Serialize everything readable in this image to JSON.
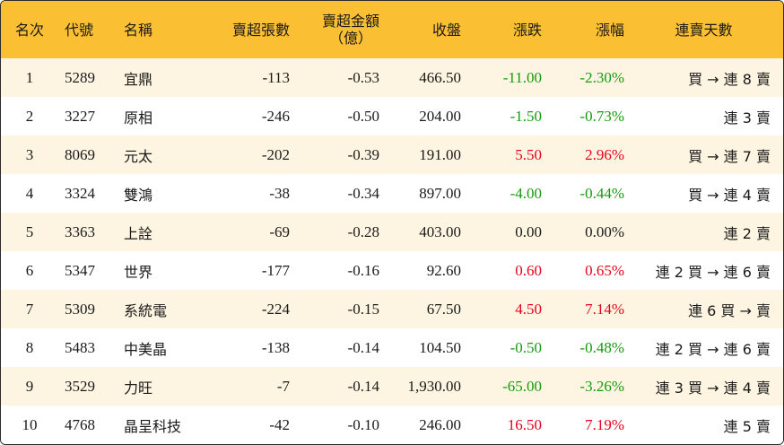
{
  "headers": {
    "rank": "名次",
    "code": "代號",
    "name": "名稱",
    "sell_lots": "賣超張數",
    "sell_amount_line1": "賣超金額",
    "sell_amount_line2": "（億）",
    "close": "收盤",
    "change": "漲跌",
    "change_pct": "漲幅",
    "streak": "連賣天數"
  },
  "rows": [
    {
      "rank": "1",
      "code": "5289",
      "name": "宜鼎",
      "sell_lots": "-113",
      "sell_amount": "-0.53",
      "close": "466.50",
      "change": "-11.00",
      "change_pct": "-2.30%",
      "streak": "買 → 連 8 賣",
      "dir": "neg"
    },
    {
      "rank": "2",
      "code": "3227",
      "name": "原相",
      "sell_lots": "-246",
      "sell_amount": "-0.50",
      "close": "204.00",
      "change": "-1.50",
      "change_pct": "-0.73%",
      "streak": "連 3 賣",
      "dir": "neg"
    },
    {
      "rank": "3",
      "code": "8069",
      "name": "元太",
      "sell_lots": "-202",
      "sell_amount": "-0.39",
      "close": "191.00",
      "change": "5.50",
      "change_pct": "2.96%",
      "streak": "買 → 連 7 賣",
      "dir": "pos"
    },
    {
      "rank": "4",
      "code": "3324",
      "name": "雙鴻",
      "sell_lots": "-38",
      "sell_amount": "-0.34",
      "close": "897.00",
      "change": "-4.00",
      "change_pct": "-0.44%",
      "streak": "買 → 連 4 賣",
      "dir": "neg"
    },
    {
      "rank": "5",
      "code": "3363",
      "name": "上詮",
      "sell_lots": "-69",
      "sell_amount": "-0.28",
      "close": "403.00",
      "change": "0.00",
      "change_pct": "0.00%",
      "streak": "連 2 賣",
      "dir": "flat"
    },
    {
      "rank": "6",
      "code": "5347",
      "name": "世界",
      "sell_lots": "-177",
      "sell_amount": "-0.16",
      "close": "92.60",
      "change": "0.60",
      "change_pct": "0.65%",
      "streak": "連 2 買 → 連 6 賣",
      "dir": "pos"
    },
    {
      "rank": "7",
      "code": "5309",
      "name": "系統電",
      "sell_lots": "-224",
      "sell_amount": "-0.15",
      "close": "67.50",
      "change": "4.50",
      "change_pct": "7.14%",
      "streak": "連 6 買 → 賣",
      "dir": "pos"
    },
    {
      "rank": "8",
      "code": "5483",
      "name": "中美晶",
      "sell_lots": "-138",
      "sell_amount": "-0.14",
      "close": "104.50",
      "change": "-0.50",
      "change_pct": "-0.48%",
      "streak": "連 2 買 → 連 6 賣",
      "dir": "neg"
    },
    {
      "rank": "9",
      "code": "3529",
      "name": "力旺",
      "sell_lots": "-7",
      "sell_amount": "-0.14",
      "close": "1,930.00",
      "change": "-65.00",
      "change_pct": "-3.26%",
      "streak": "連 3 買 → 連 4 賣",
      "dir": "neg"
    },
    {
      "rank": "10",
      "code": "4768",
      "name": "晶呈科技",
      "sell_lots": "-42",
      "sell_amount": "-0.10",
      "close": "246.00",
      "change": "16.50",
      "change_pct": "7.19%",
      "streak": "連 5 賣",
      "dir": "pos"
    }
  ],
  "colors": {
    "header_bg": "#fbbf33",
    "odd_row_bg": "#fdf5e2",
    "up": "#e8001c",
    "down": "#169b0f"
  }
}
